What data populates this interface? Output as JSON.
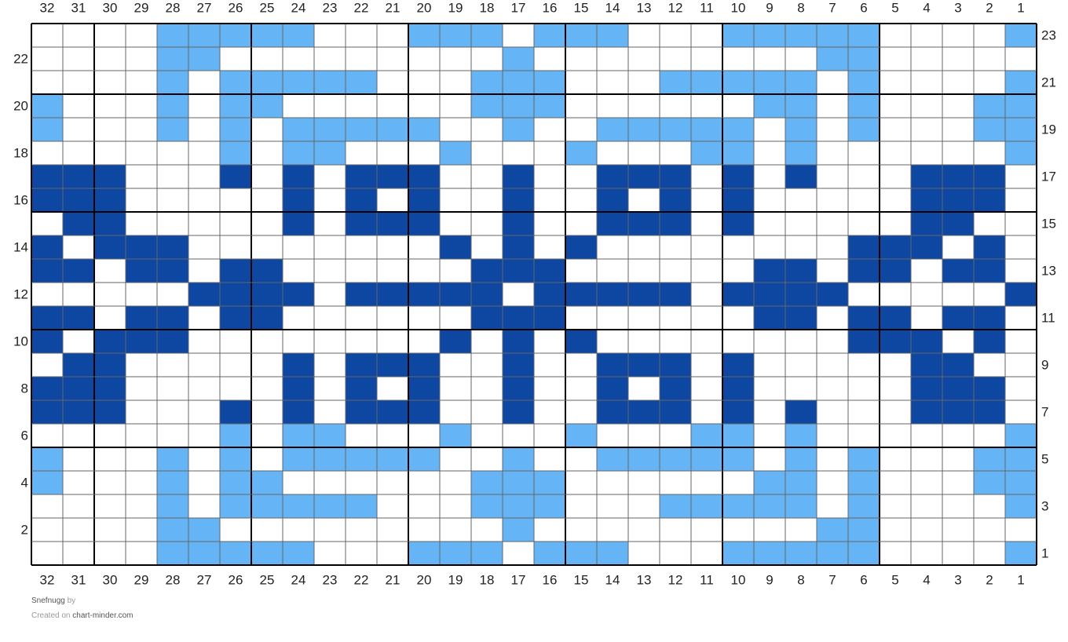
{
  "columns": [
    32,
    31,
    30,
    29,
    28,
    27,
    26,
    25,
    24,
    23,
    22,
    21,
    20,
    19,
    18,
    17,
    16,
    15,
    14,
    13,
    12,
    11,
    10,
    9,
    8,
    7,
    6,
    5,
    4,
    3,
    2,
    1
  ],
  "rows": [
    {
      "number": 23,
      "cells": [
        "#fff",
        "#fff",
        "#fff",
        "#fff",
        "#64b4f6",
        "#64b4f6",
        "#64b4f6",
        "#64b4f6",
        "#64b4f6",
        "#fff",
        "#fff",
        "#fff",
        "#64b4f6",
        "#64b4f6",
        "#64b4f6",
        "#fff",
        "#64b4f6",
        "#64b4f6",
        "#64b4f6",
        "#fff",
        "#fff",
        "#fff",
        "#64b4f6",
        "#64b4f6",
        "#64b4f6",
        "#64b4f6",
        "#64b4f6",
        "#fff",
        "#fff",
        "#fff",
        "#fff",
        "#64b4f6"
      ]
    },
    {
      "number": 22,
      "cells": [
        "#fff",
        "#fff",
        "#fff",
        "#fff",
        "#64b4f6",
        "#64b4f6",
        "#fff",
        "#fff",
        "#fff",
        "#fff",
        "#fff",
        "#fff",
        "#fff",
        "#fff",
        "#fff",
        "#64b4f6",
        "#fff",
        "#fff",
        "#fff",
        "#fff",
        "#fff",
        "#fff",
        "#fff",
        "#fff",
        "#fff",
        "#64b4f6",
        "#64b4f6",
        "#fff",
        "#fff",
        "#fff",
        "#fff",
        "#fff"
      ]
    },
    {
      "number": 21,
      "cells": [
        "#fff",
        "#fff",
        "#fff",
        "#fff",
        "#64b4f6",
        "#fff",
        "#64b4f6",
        "#64b4f6",
        "#64b4f6",
        "#64b4f6",
        "#64b4f6",
        "#fff",
        "#fff",
        "#fff",
        "#64b4f6",
        "#64b4f6",
        "#64b4f6",
        "#fff",
        "#fff",
        "#fff",
        "#64b4f6",
        "#64b4f6",
        "#64b4f6",
        "#64b4f6",
        "#64b4f6",
        "#fff",
        "#64b4f6",
        "#fff",
        "#fff",
        "#fff",
        "#fff",
        "#64b4f6"
      ]
    },
    {
      "number": 20,
      "cells": [
        "#64b4f6",
        "#fff",
        "#fff",
        "#fff",
        "#64b4f6",
        "#fff",
        "#64b4f6",
        "#64b4f6",
        "#fff",
        "#fff",
        "#fff",
        "#fff",
        "#fff",
        "#fff",
        "#64b4f6",
        "#64b4f6",
        "#64b4f6",
        "#fff",
        "#fff",
        "#fff",
        "#fff",
        "#fff",
        "#fff",
        "#64b4f6",
        "#64b4f6",
        "#fff",
        "#64b4f6",
        "#fff",
        "#fff",
        "#fff",
        "#64b4f6",
        "#64b4f6"
      ]
    },
    {
      "number": 19,
      "cells": [
        "#64b4f6",
        "#fff",
        "#fff",
        "#fff",
        "#64b4f6",
        "#fff",
        "#64b4f6",
        "#fff",
        "#64b4f6",
        "#64b4f6",
        "#64b4f6",
        "#64b4f6",
        "#64b4f6",
        "#fff",
        "#fff",
        "#64b4f6",
        "#fff",
        "#fff",
        "#64b4f6",
        "#64b4f6",
        "#64b4f6",
        "#64b4f6",
        "#64b4f6",
        "#fff",
        "#64b4f6",
        "#fff",
        "#64b4f6",
        "#fff",
        "#fff",
        "#fff",
        "#64b4f6",
        "#64b4f6"
      ]
    },
    {
      "number": 18,
      "cells": [
        "#fff",
        "#fff",
        "#fff",
        "#fff",
        "#fff",
        "#fff",
        "#64b4f6",
        "#fff",
        "#64b4f6",
        "#64b4f6",
        "#fff",
        "#fff",
        "#fff",
        "#64b4f6",
        "#fff",
        "#fff",
        "#fff",
        "#64b4f6",
        "#fff",
        "#fff",
        "#fff",
        "#64b4f6",
        "#64b4f6",
        "#fff",
        "#64b4f6",
        "#fff",
        "#fff",
        "#fff",
        "#fff",
        "#fff",
        "#fff",
        "#64b4f6"
      ]
    },
    {
      "number": 17,
      "cells": [
        "#0e47a1",
        "#0e47a1",
        "#0e47a1",
        "#fff",
        "#fff",
        "#fff",
        "#0e47a1",
        "#fff",
        "#0e47a1",
        "#fff",
        "#0e47a1",
        "#0e47a1",
        "#0e47a1",
        "#fff",
        "#fff",
        "#0e47a1",
        "#fff",
        "#fff",
        "#0e47a1",
        "#0e47a1",
        "#0e47a1",
        "#fff",
        "#0e47a1",
        "#fff",
        "#0e47a1",
        "#fff",
        "#fff",
        "#fff",
        "#0e47a1",
        "#0e47a1",
        "#0e47a1",
        "#fff"
      ]
    },
    {
      "number": 16,
      "cells": [
        "#0e47a1",
        "#0e47a1",
        "#0e47a1",
        "#fff",
        "#fff",
        "#fff",
        "#fff",
        "#fff",
        "#0e47a1",
        "#fff",
        "#0e47a1",
        "#fff",
        "#0e47a1",
        "#fff",
        "#fff",
        "#0e47a1",
        "#fff",
        "#fff",
        "#0e47a1",
        "#fff",
        "#0e47a1",
        "#fff",
        "#0e47a1",
        "#fff",
        "#fff",
        "#fff",
        "#fff",
        "#fff",
        "#0e47a1",
        "#0e47a1",
        "#0e47a1",
        "#fff"
      ]
    },
    {
      "number": 15,
      "cells": [
        "#fff",
        "#0e47a1",
        "#0e47a1",
        "#fff",
        "#fff",
        "#fff",
        "#fff",
        "#fff",
        "#0e47a1",
        "#fff",
        "#0e47a1",
        "#0e47a1",
        "#0e47a1",
        "#fff",
        "#fff",
        "#0e47a1",
        "#fff",
        "#fff",
        "#0e47a1",
        "#0e47a1",
        "#0e47a1",
        "#fff",
        "#0e47a1",
        "#fff",
        "#fff",
        "#fff",
        "#fff",
        "#fff",
        "#0e47a1",
        "#0e47a1",
        "#fff",
        "#fff"
      ]
    },
    {
      "number": 14,
      "cells": [
        "#0e47a1",
        "#fff",
        "#0e47a1",
        "#0e47a1",
        "#0e47a1",
        "#fff",
        "#fff",
        "#fff",
        "#fff",
        "#fff",
        "#fff",
        "#fff",
        "#fff",
        "#0e47a1",
        "#fff",
        "#0e47a1",
        "#fff",
        "#0e47a1",
        "#fff",
        "#fff",
        "#fff",
        "#fff",
        "#fff",
        "#fff",
        "#fff",
        "#fff",
        "#0e47a1",
        "#0e47a1",
        "#0e47a1",
        "#fff",
        "#0e47a1",
        "#fff"
      ]
    },
    {
      "number": 13,
      "cells": [
        "#0e47a1",
        "#0e47a1",
        "#fff",
        "#0e47a1",
        "#0e47a1",
        "#fff",
        "#0e47a1",
        "#0e47a1",
        "#fff",
        "#fff",
        "#fff",
        "#fff",
        "#fff",
        "#fff",
        "#0e47a1",
        "#0e47a1",
        "#0e47a1",
        "#fff",
        "#fff",
        "#fff",
        "#fff",
        "#fff",
        "#fff",
        "#0e47a1",
        "#0e47a1",
        "#fff",
        "#0e47a1",
        "#0e47a1",
        "#fff",
        "#0e47a1",
        "#0e47a1",
        "#fff"
      ]
    },
    {
      "number": 12,
      "cells": [
        "#fff",
        "#fff",
        "#fff",
        "#fff",
        "#fff",
        "#0e47a1",
        "#0e47a1",
        "#0e47a1",
        "#0e47a1",
        "#fff",
        "#0e47a1",
        "#0e47a1",
        "#0e47a1",
        "#0e47a1",
        "#0e47a1",
        "#fff",
        "#0e47a1",
        "#0e47a1",
        "#0e47a1",
        "#0e47a1",
        "#0e47a1",
        "#fff",
        "#0e47a1",
        "#0e47a1",
        "#0e47a1",
        "#0e47a1",
        "#fff",
        "#fff",
        "#fff",
        "#fff",
        "#fff",
        "#0e47a1"
      ]
    },
    {
      "number": 11,
      "cells": [
        "#0e47a1",
        "#0e47a1",
        "#fff",
        "#0e47a1",
        "#0e47a1",
        "#fff",
        "#0e47a1",
        "#0e47a1",
        "#fff",
        "#fff",
        "#fff",
        "#fff",
        "#fff",
        "#fff",
        "#0e47a1",
        "#0e47a1",
        "#0e47a1",
        "#fff",
        "#fff",
        "#fff",
        "#fff",
        "#fff",
        "#fff",
        "#0e47a1",
        "#0e47a1",
        "#fff",
        "#0e47a1",
        "#0e47a1",
        "#fff",
        "#0e47a1",
        "#0e47a1",
        "#fff"
      ]
    },
    {
      "number": 10,
      "cells": [
        "#0e47a1",
        "#fff",
        "#0e47a1",
        "#0e47a1",
        "#0e47a1",
        "#fff",
        "#fff",
        "#fff",
        "#fff",
        "#fff",
        "#fff",
        "#fff",
        "#fff",
        "#0e47a1",
        "#fff",
        "#0e47a1",
        "#fff",
        "#0e47a1",
        "#fff",
        "#fff",
        "#fff",
        "#fff",
        "#fff",
        "#fff",
        "#fff",
        "#fff",
        "#0e47a1",
        "#0e47a1",
        "#0e47a1",
        "#fff",
        "#0e47a1",
        "#fff"
      ]
    },
    {
      "number": 9,
      "cells": [
        "#fff",
        "#0e47a1",
        "#0e47a1",
        "#fff",
        "#fff",
        "#fff",
        "#fff",
        "#fff",
        "#0e47a1",
        "#fff",
        "#0e47a1",
        "#0e47a1",
        "#0e47a1",
        "#fff",
        "#fff",
        "#0e47a1",
        "#fff",
        "#fff",
        "#0e47a1",
        "#0e47a1",
        "#0e47a1",
        "#fff",
        "#0e47a1",
        "#fff",
        "#fff",
        "#fff",
        "#fff",
        "#fff",
        "#0e47a1",
        "#0e47a1",
        "#fff",
        "#fff"
      ]
    },
    {
      "number": 8,
      "cells": [
        "#0e47a1",
        "#0e47a1",
        "#0e47a1",
        "#fff",
        "#fff",
        "#fff",
        "#fff",
        "#fff",
        "#0e47a1",
        "#fff",
        "#0e47a1",
        "#fff",
        "#0e47a1",
        "#fff",
        "#fff",
        "#0e47a1",
        "#fff",
        "#fff",
        "#0e47a1",
        "#fff",
        "#0e47a1",
        "#fff",
        "#0e47a1",
        "#fff",
        "#fff",
        "#fff",
        "#fff",
        "#fff",
        "#0e47a1",
        "#0e47a1",
        "#0e47a1",
        "#fff"
      ]
    },
    {
      "number": 7,
      "cells": [
        "#0e47a1",
        "#0e47a1",
        "#0e47a1",
        "#fff",
        "#fff",
        "#fff",
        "#0e47a1",
        "#fff",
        "#0e47a1",
        "#fff",
        "#0e47a1",
        "#0e47a1",
        "#0e47a1",
        "#fff",
        "#fff",
        "#0e47a1",
        "#fff",
        "#fff",
        "#0e47a1",
        "#0e47a1",
        "#0e47a1",
        "#fff",
        "#0e47a1",
        "#fff",
        "#0e47a1",
        "#fff",
        "#fff",
        "#fff",
        "#0e47a1",
        "#0e47a1",
        "#0e47a1",
        "#fff"
      ]
    },
    {
      "number": 6,
      "cells": [
        "#fff",
        "#fff",
        "#fff",
        "#fff",
        "#fff",
        "#fff",
        "#64b4f6",
        "#fff",
        "#64b4f6",
        "#64b4f6",
        "#fff",
        "#fff",
        "#fff",
        "#64b4f6",
        "#fff",
        "#fff",
        "#fff",
        "#64b4f6",
        "#fff",
        "#fff",
        "#fff",
        "#64b4f6",
        "#64b4f6",
        "#fff",
        "#64b4f6",
        "#fff",
        "#fff",
        "#fff",
        "#fff",
        "#fff",
        "#fff",
        "#64b4f6"
      ]
    },
    {
      "number": 5,
      "cells": [
        "#64b4f6",
        "#fff",
        "#fff",
        "#fff",
        "#64b4f6",
        "#fff",
        "#64b4f6",
        "#fff",
        "#64b4f6",
        "#64b4f6",
        "#64b4f6",
        "#64b4f6",
        "#64b4f6",
        "#fff",
        "#fff",
        "#64b4f6",
        "#fff",
        "#fff",
        "#64b4f6",
        "#64b4f6",
        "#64b4f6",
        "#64b4f6",
        "#64b4f6",
        "#fff",
        "#64b4f6",
        "#fff",
        "#64b4f6",
        "#fff",
        "#fff",
        "#fff",
        "#64b4f6",
        "#64b4f6"
      ]
    },
    {
      "number": 4,
      "cells": [
        "#64b4f6",
        "#fff",
        "#fff",
        "#fff",
        "#64b4f6",
        "#fff",
        "#64b4f6",
        "#64b4f6",
        "#fff",
        "#fff",
        "#fff",
        "#fff",
        "#fff",
        "#fff",
        "#64b4f6",
        "#64b4f6",
        "#64b4f6",
        "#fff",
        "#fff",
        "#fff",
        "#fff",
        "#fff",
        "#fff",
        "#64b4f6",
        "#64b4f6",
        "#fff",
        "#64b4f6",
        "#fff",
        "#fff",
        "#fff",
        "#64b4f6",
        "#64b4f6"
      ]
    },
    {
      "number": 3,
      "cells": [
        "#fff",
        "#fff",
        "#fff",
        "#fff",
        "#64b4f6",
        "#fff",
        "#64b4f6",
        "#64b4f6",
        "#64b4f6",
        "#64b4f6",
        "#64b4f6",
        "#fff",
        "#fff",
        "#fff",
        "#64b4f6",
        "#64b4f6",
        "#64b4f6",
        "#fff",
        "#fff",
        "#fff",
        "#64b4f6",
        "#64b4f6",
        "#64b4f6",
        "#64b4f6",
        "#64b4f6",
        "#fff",
        "#64b4f6",
        "#fff",
        "#fff",
        "#fff",
        "#fff",
        "#64b4f6"
      ]
    },
    {
      "number": 2,
      "cells": [
        "#fff",
        "#fff",
        "#fff",
        "#fff",
        "#64b4f6",
        "#64b4f6",
        "#fff",
        "#fff",
        "#fff",
        "#fff",
        "#fff",
        "#fff",
        "#fff",
        "#fff",
        "#fff",
        "#64b4f6",
        "#fff",
        "#fff",
        "#fff",
        "#fff",
        "#fff",
        "#fff",
        "#fff",
        "#fff",
        "#fff",
        "#64b4f6",
        "#64b4f6",
        "#fff",
        "#fff",
        "#fff",
        "#fff",
        "#fff"
      ]
    },
    {
      "number": 1,
      "cells": [
        "#fff",
        "#fff",
        "#fff",
        "#fff",
        "#64b4f6",
        "#64b4f6",
        "#64b4f6",
        "#64b4f6",
        "#64b4f6",
        "#fff",
        "#fff",
        "#fff",
        "#64b4f6",
        "#64b4f6",
        "#64b4f6",
        "#fff",
        "#64b4f6",
        "#64b4f6",
        "#64b4f6",
        "#fff",
        "#fff",
        "#fff",
        "#64b4f6",
        "#64b4f6",
        "#64b4f6",
        "#64b4f6",
        "#64b4f6",
        "#fff",
        "#fff",
        "#fff",
        "#fff",
        "#64b4f6"
      ]
    }
  ],
  "footer": {
    "pattern_name": "Snefnugg",
    "by": "by",
    "created_on": "Created on",
    "site": "chart-minder.com"
  }
}
